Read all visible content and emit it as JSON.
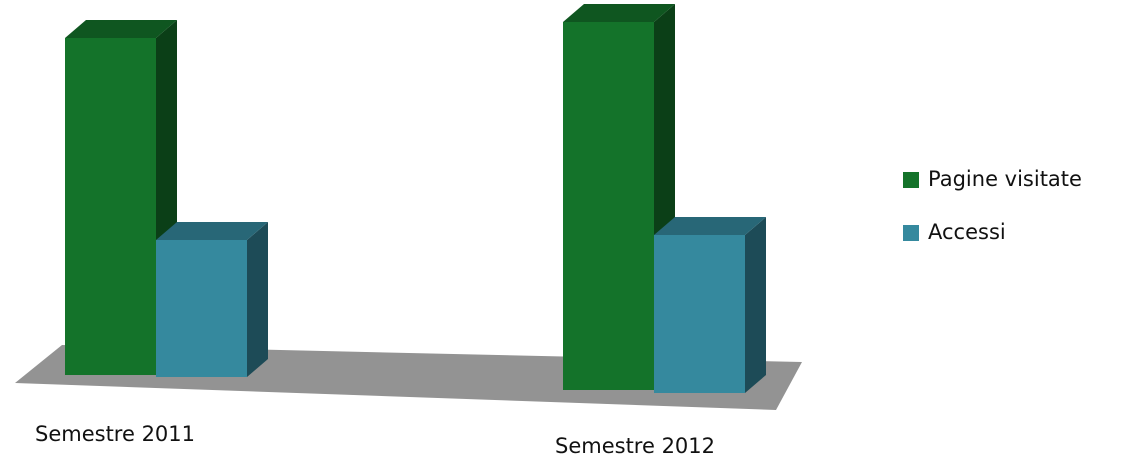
{
  "chart_data": {
    "type": "bar3d",
    "categories": [
      "Semestre 2011",
      "Semestre 2012"
    ],
    "series": [
      {
        "name": "Pagine visitate",
        "color": "#14732a",
        "values": [
          337,
          368
        ]
      },
      {
        "name": "Accessi",
        "color": "#35899e",
        "values": [
          137,
          158
        ]
      }
    ]
  }
}
